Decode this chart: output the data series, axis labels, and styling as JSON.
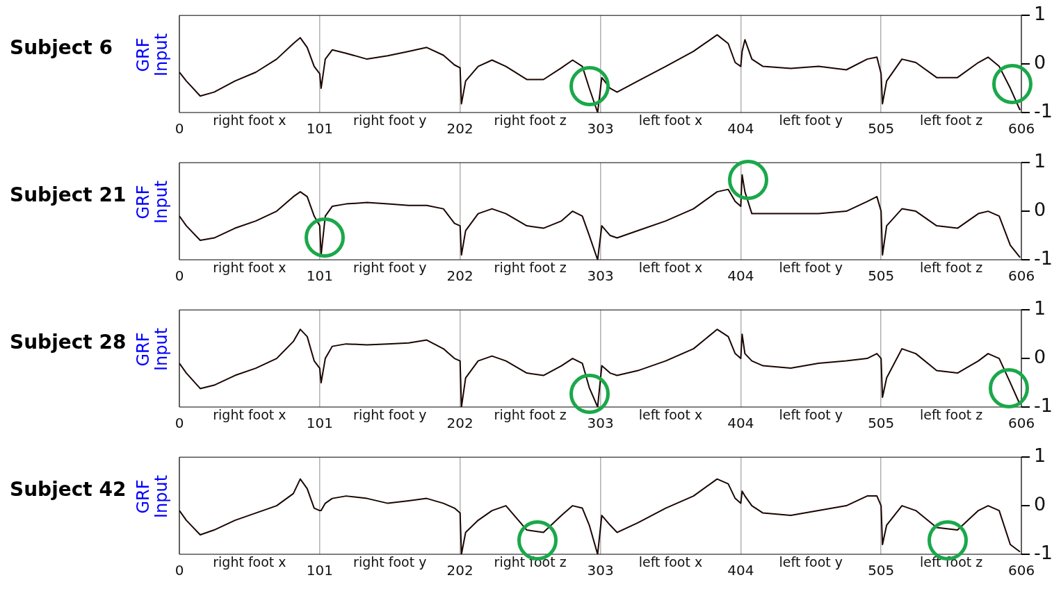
{
  "chart_data": [
    {
      "type": "line",
      "title": "Subject 6",
      "ylabel": "GRF Input",
      "xlim": [
        0,
        606
      ],
      "xticks": [
        0,
        101,
        202,
        303,
        404,
        505,
        606
      ],
      "ylim": [
        -1,
        1
      ],
      "yticks": [
        -1,
        0,
        1
      ],
      "grid": "x",
      "marker": "none",
      "x": [
        0,
        5,
        15,
        25,
        40,
        55,
        70,
        82,
        87,
        92,
        97,
        101,
        102,
        105,
        110,
        120,
        135,
        150,
        165,
        178,
        190,
        198,
        202,
        203,
        206,
        215,
        225,
        235,
        250,
        262,
        275,
        283,
        290,
        295,
        301,
        304,
        310,
        315,
        330,
        350,
        370,
        387,
        395,
        400,
        404,
        405,
        407,
        412,
        420,
        440,
        460,
        480,
        495,
        502,
        505,
        506,
        509,
        520,
        530,
        545,
        560,
        575,
        582,
        590,
        598,
        605
      ],
      "series": [
        {
          "color": "#1a0500",
          "values": [
            -0.17,
            -0.35,
            -0.66,
            -0.58,
            -0.35,
            -0.17,
            0.1,
            0.42,
            0.54,
            0.34,
            -0.05,
            -0.2,
            -0.5,
            0.1,
            0.29,
            0.22,
            0.1,
            0.17,
            0.26,
            0.34,
            0.18,
            -0.02,
            -0.08,
            -0.82,
            -0.35,
            -0.05,
            0.08,
            -0.05,
            -0.32,
            -0.32,
            -0.08,
            0.08,
            -0.05,
            -0.5,
            -1,
            -0.28,
            -0.5,
            -0.58,
            -0.35,
            -0.05,
            0.26,
            0.6,
            0.42,
            0.03,
            -0.05,
            0.26,
            0.5,
            0.1,
            -0.05,
            -0.09,
            -0.05,
            -0.12,
            0.1,
            0.14,
            -0.2,
            -0.82,
            -0.35,
            0.1,
            0.03,
            -0.28,
            -0.28,
            0.03,
            0.14,
            -0.05,
            -0.5,
            -0.95
          ]
        }
      ],
      "annotations": [
        "right foot x",
        "right foot y",
        "right foot z",
        "left foot x",
        "left foot y",
        "left foot z"
      ]
    },
    {
      "type": "line",
      "title": "Subject 21",
      "ylabel": "GRF Input",
      "xlim": [
        0,
        606
      ],
      "xticks": [
        0,
        101,
        202,
        303,
        404,
        505,
        606
      ],
      "ylim": [
        -1,
        1
      ],
      "yticks": [
        -1,
        0,
        1
      ],
      "grid": "x",
      "marker": "none",
      "x": [
        0,
        5,
        15,
        25,
        40,
        55,
        70,
        82,
        87,
        92,
        97,
        101,
        102,
        105,
        110,
        120,
        135,
        150,
        165,
        178,
        190,
        198,
        202,
        203,
        206,
        215,
        225,
        235,
        250,
        262,
        275,
        283,
        290,
        295,
        301,
        304,
        310,
        315,
        330,
        350,
        370,
        387,
        395,
        400,
        404,
        405,
        407,
        412,
        420,
        440,
        460,
        480,
        495,
        502,
        505,
        506,
        509,
        520,
        530,
        545,
        560,
        575,
        582,
        590,
        598,
        605
      ],
      "series": [
        {
          "color": "#1a0500",
          "values": [
            -0.1,
            -0.3,
            -0.6,
            -0.55,
            -0.35,
            -0.2,
            0.0,
            0.3,
            0.4,
            0.3,
            -0.1,
            -0.3,
            -0.9,
            -0.1,
            0.1,
            0.15,
            0.18,
            0.15,
            0.12,
            0.12,
            0.05,
            -0.25,
            -0.3,
            -0.9,
            -0.4,
            -0.05,
            0.05,
            -0.05,
            -0.3,
            -0.35,
            -0.2,
            0.0,
            -0.1,
            -0.5,
            -1,
            -0.3,
            -0.5,
            -0.55,
            -0.4,
            -0.2,
            0.05,
            0.4,
            0.45,
            0.2,
            0.1,
            0.75,
            0.4,
            -0.05,
            -0.05,
            -0.05,
            -0.05,
            0.0,
            0.2,
            0.3,
            0.0,
            -0.9,
            -0.3,
            0.05,
            0.0,
            -0.3,
            -0.35,
            -0.05,
            0.0,
            -0.1,
            -0.7,
            -0.95
          ]
        }
      ],
      "annotations": [
        "right foot x",
        "right foot y",
        "right foot z",
        "left foot x",
        "left foot y",
        "left foot z"
      ]
    },
    {
      "type": "line",
      "title": "Subject 28",
      "ylabel": "GRF Input",
      "xlim": [
        0,
        606
      ],
      "xticks": [
        0,
        101,
        202,
        303,
        404,
        505,
        606
      ],
      "ylim": [
        -1,
        1
      ],
      "yticks": [
        -1,
        0,
        1
      ],
      "grid": "x",
      "marker": "none",
      "x": [
        0,
        5,
        15,
        25,
        40,
        55,
        70,
        82,
        87,
        92,
        97,
        101,
        102,
        105,
        110,
        120,
        135,
        150,
        165,
        178,
        190,
        198,
        202,
        203,
        206,
        215,
        225,
        235,
        250,
        262,
        275,
        283,
        290,
        295,
        301,
        304,
        310,
        315,
        330,
        350,
        370,
        387,
        395,
        400,
        404,
        405,
        407,
        412,
        420,
        440,
        460,
        480,
        495,
        502,
        505,
        506,
        509,
        520,
        530,
        545,
        560,
        575,
        582,
        590,
        598,
        605
      ],
      "series": [
        {
          "color": "#1a0500",
          "values": [
            -0.1,
            -0.3,
            -0.62,
            -0.55,
            -0.35,
            -0.2,
            0.0,
            0.35,
            0.6,
            0.45,
            -0.05,
            -0.2,
            -0.5,
            0.0,
            0.25,
            0.3,
            0.28,
            0.3,
            0.32,
            0.38,
            0.2,
            0.0,
            -0.05,
            -1,
            -0.4,
            -0.05,
            0.05,
            -0.05,
            -0.3,
            -0.35,
            -0.15,
            0.0,
            -0.1,
            -0.6,
            -1,
            -0.15,
            -0.3,
            -0.35,
            -0.25,
            -0.05,
            0.2,
            0.6,
            0.45,
            0.1,
            0.0,
            0.5,
            0.1,
            -0.05,
            -0.15,
            -0.2,
            -0.1,
            -0.05,
            0.0,
            0.1,
            0.0,
            -0.8,
            -0.4,
            0.2,
            0.1,
            -0.25,
            -0.3,
            -0.05,
            0.1,
            0.0,
            -0.5,
            -0.95
          ]
        }
      ],
      "annotations": [
        "right foot x",
        "right foot y",
        "right foot z",
        "left foot x",
        "left foot y",
        "left foot z"
      ]
    },
    {
      "type": "line",
      "title": "Subject 42",
      "ylabel": "GRF Input",
      "xlim": [
        0,
        606
      ],
      "xticks": [
        0,
        101,
        202,
        303,
        404,
        505,
        606
      ],
      "ylim": [
        -1,
        1
      ],
      "yticks": [
        -1,
        0,
        1
      ],
      "grid": "x",
      "marker": "none",
      "x": [
        0,
        5,
        15,
        25,
        40,
        55,
        70,
        82,
        87,
        92,
        97,
        101,
        102,
        105,
        110,
        120,
        135,
        150,
        165,
        178,
        190,
        198,
        202,
        203,
        206,
        215,
        225,
        235,
        250,
        262,
        275,
        283,
        290,
        295,
        301,
        304,
        310,
        315,
        330,
        350,
        370,
        387,
        395,
        400,
        404,
        405,
        407,
        412,
        420,
        440,
        460,
        480,
        495,
        502,
        505,
        506,
        509,
        520,
        530,
        545,
        560,
        575,
        582,
        590,
        598,
        605
      ],
      "series": [
        {
          "color": "#1a0500",
          "values": [
            -0.1,
            -0.3,
            -0.6,
            -0.5,
            -0.3,
            -0.15,
            0.0,
            0.25,
            0.55,
            0.35,
            -0.05,
            -0.1,
            -0.1,
            0.05,
            0.15,
            0.2,
            0.15,
            0.05,
            0.1,
            0.15,
            0.05,
            -0.05,
            -0.15,
            -1,
            -0.55,
            -0.3,
            -0.1,
            0.0,
            -0.5,
            -0.55,
            -0.2,
            0.0,
            -0.05,
            -0.4,
            -1,
            -0.2,
            -0.4,
            -0.55,
            -0.35,
            -0.05,
            0.2,
            0.55,
            0.45,
            0.15,
            0.05,
            0.3,
            0.2,
            0.0,
            -0.15,
            -0.2,
            -0.1,
            0.0,
            0.2,
            0.2,
            0.0,
            -0.8,
            -0.4,
            0.0,
            -0.1,
            -0.45,
            -0.5,
            -0.1,
            0.0,
            -0.1,
            -0.8,
            -0.95
          ]
        }
      ],
      "annotations": [
        "right foot x",
        "right foot y",
        "right foot z",
        "left foot x",
        "left foot y",
        "left foot z"
      ]
    }
  ]
}
